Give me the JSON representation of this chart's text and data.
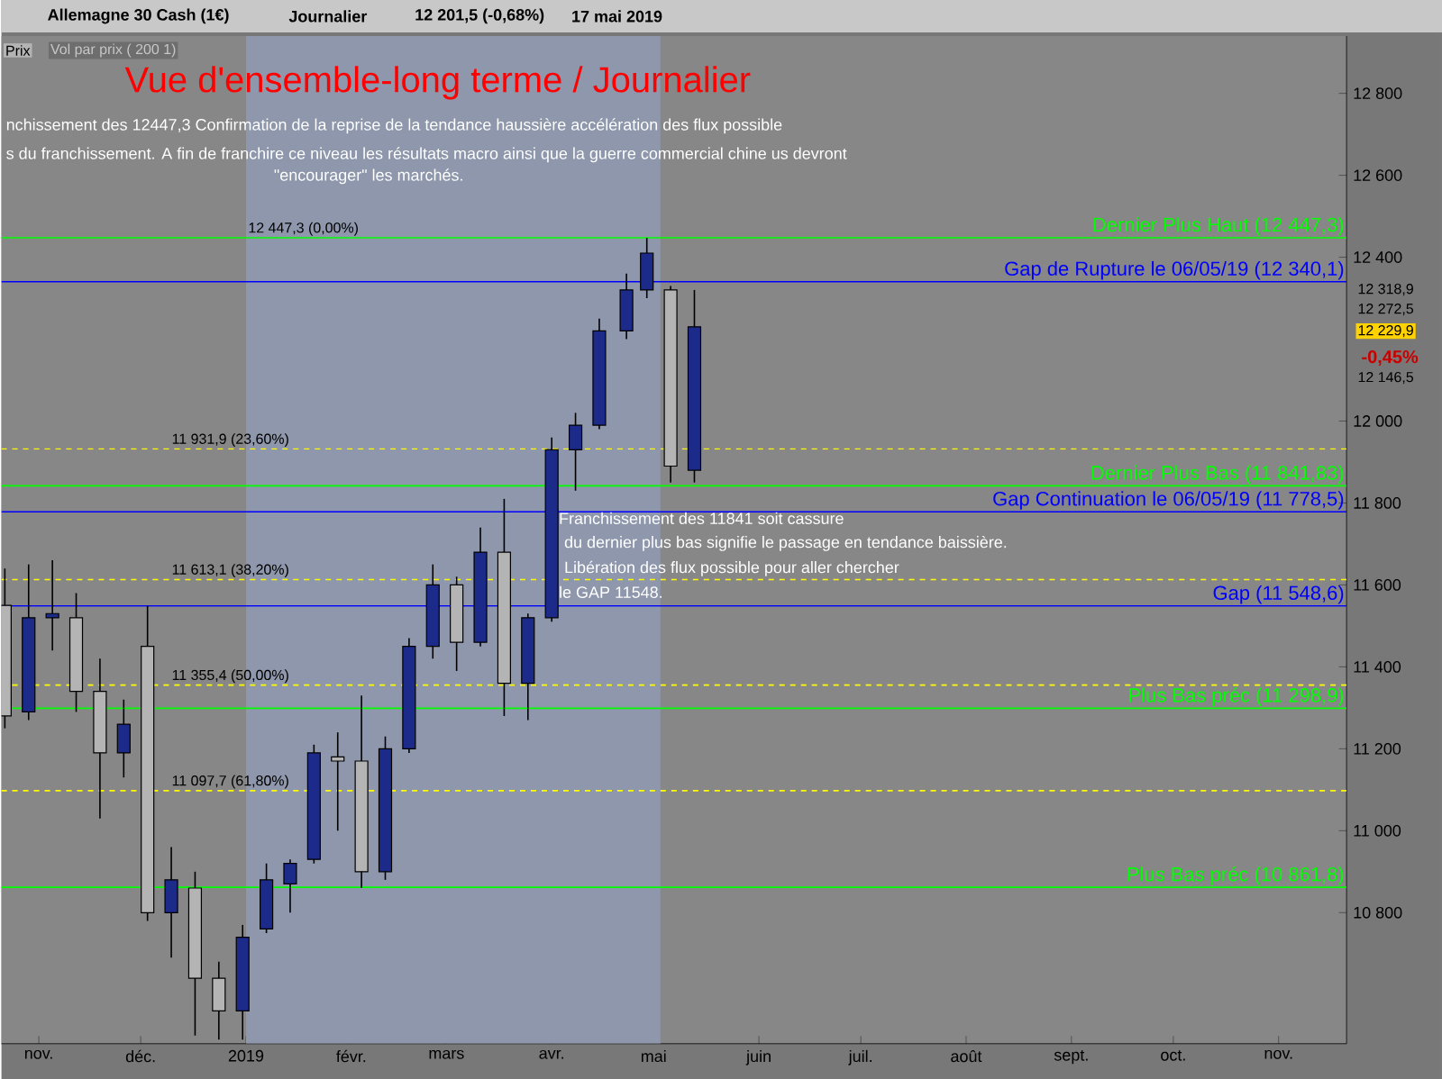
{
  "chart_data": {
    "type": "candlestick",
    "title": "Vue d'ensemble-long terme / Journalier",
    "x": [
      "2018-10-22",
      "2018-10-29",
      "2018-11-05",
      "2018-11-12",
      "2018-11-19",
      "2018-11-26",
      "2018-12-03",
      "2018-12-10",
      "2018-12-17",
      "2018-12-24",
      "2018-12-31",
      "2019-01-07",
      "2019-01-14",
      "2019-01-21",
      "2019-01-28",
      "2019-02-04",
      "2019-02-11",
      "2019-02-18",
      "2019-02-25",
      "2019-03-04",
      "2019-03-11",
      "2019-03-18",
      "2019-03-25",
      "2019-04-01",
      "2019-04-08",
      "2019-04-15",
      "2019-04-23",
      "2019-04-29",
      "2019-05-06",
      "2019-05-13"
    ],
    "ohlc": [
      [
        11550,
        11640,
        11250,
        11280
      ],
      [
        11290,
        11650,
        11270,
        11520
      ],
      [
        11520,
        11660,
        11440,
        11530
      ],
      [
        11520,
        11580,
        11290,
        11340
      ],
      [
        11340,
        11420,
        11030,
        11190
      ],
      [
        11190,
        11320,
        11130,
        11260
      ],
      [
        11450,
        11550,
        10780,
        10800
      ],
      [
        10800,
        10960,
        10690,
        10880
      ],
      [
        10860,
        10900,
        10500,
        10640
      ],
      [
        10640,
        10680,
        10490,
        10560
      ],
      [
        10560,
        10770,
        10490,
        10740
      ],
      [
        10760,
        10920,
        10750,
        10880
      ],
      [
        10870,
        10930,
        10800,
        10920
      ],
      [
        10930,
        11210,
        10920,
        11190
      ],
      [
        11180,
        11240,
        11000,
        11170
      ],
      [
        11170,
        11330,
        10860,
        10900
      ],
      [
        10900,
        11230,
        10880,
        11200
      ],
      [
        11200,
        11470,
        11190,
        11450
      ],
      [
        11450,
        11650,
        11420,
        11600
      ],
      [
        11600,
        11620,
        11390,
        11460
      ],
      [
        11460,
        11740,
        11450,
        11680
      ],
      [
        11680,
        11810,
        11280,
        11360
      ],
      [
        11360,
        11530,
        11270,
        11520
      ],
      [
        11520,
        11960,
        11510,
        11930
      ],
      [
        11930,
        12020,
        11830,
        11990
      ],
      [
        11990,
        12250,
        11980,
        12220
      ],
      [
        12220,
        12360,
        12200,
        12320
      ],
      [
        12320,
        12447.3,
        12300,
        12410
      ],
      [
        12320,
        12330,
        11850,
        11890
      ],
      [
        11880,
        12320,
        11850,
        12230
      ]
    ],
    "colors": [
      "#b4b4b4",
      "#1c2a8a",
      "#1c2a8a",
      "#b4b4b4",
      "#b4b4b4",
      "#1c2a8a",
      "#b4b4b4",
      "#1c2a8a",
      "#b4b4b4",
      "#b4b4b4",
      "#1c2a8a",
      "#1c2a8a",
      "#1c2a8a",
      "#1c2a8a",
      "#b4b4b4",
      "#b4b4b4",
      "#1c2a8a",
      "#1c2a8a",
      "#1c2a8a",
      "#b4b4b4",
      "#1c2a8a",
      "#b4b4b4",
      "#1c2a8a",
      "#1c2a8a",
      "#1c2a8a",
      "#1c2a8a",
      "#1c2a8a",
      "#1c2a8a",
      "#b4b4b4",
      "#1c2a8a"
    ],
    "xlim": [
      "2018-10-21",
      "2019-11-21"
    ],
    "xticks": [
      {
        "value": "2018-11-01",
        "label": "nov."
      },
      {
        "value": "2018-12-01",
        "label": "déc."
      },
      {
        "value": "2019-01-01",
        "label": "2019"
      },
      {
        "value": "2019-02-01",
        "label": "févr."
      },
      {
        "value": "2019-03-01",
        "label": "mars"
      },
      {
        "value": "2019-04-01",
        "label": "avr."
      },
      {
        "value": "2019-05-01",
        "label": "mai"
      },
      {
        "value": "2019-06-01",
        "label": "juin"
      },
      {
        "value": "2019-07-01",
        "label": "juil."
      },
      {
        "value": "2019-08-01",
        "label": "août"
      },
      {
        "value": "2019-09-01",
        "label": "sept."
      },
      {
        "value": "2019-10-01",
        "label": "oct."
      },
      {
        "value": "2019-11-01",
        "label": "nov."
      }
    ],
    "ylim": [
      10480,
      12940
    ],
    "yticks": [
      {
        "value": 10800,
        "label": "10 800"
      },
      {
        "value": 11000,
        "label": "11 000"
      },
      {
        "value": 11200,
        "label": "11 200"
      },
      {
        "value": 11400,
        "label": "11 400"
      },
      {
        "value": 11600,
        "label": "11 600"
      },
      {
        "value": 11800,
        "label": "11 800"
      },
      {
        "value": 12000,
        "label": "12 000"
      },
      {
        "value": 12400,
        "label": "12 400"
      },
      {
        "value": 12600,
        "label": "12 600"
      },
      {
        "value": 12800,
        "label": "12 800"
      }
    ],
    "bands": [
      {
        "axis": "x",
        "from": "2019-01-01",
        "to": "2019-05-03",
        "color": "#8e97ab"
      }
    ],
    "ref_lines": [
      {
        "axis": "y",
        "value": 12447.3,
        "label": "Dernier Plus Haut (12 447,3)",
        "color": "#00ff00"
      },
      {
        "axis": "y",
        "value": 12340.1,
        "label": "Gap de Rupture le 06/05/19 (12 340,1)",
        "color": "#0000ff"
      },
      {
        "axis": "y",
        "value": 11841.83,
        "label": "Dernier Plus Bas  (11 841,83)",
        "color": "#00ff00"
      },
      {
        "axis": "y",
        "value": 11778.5,
        "label": "Gap Continuation le 06/05/19 (11 778,5)",
        "color": "#0000ff"
      },
      {
        "axis": "y",
        "value": 11548.6,
        "label": "Gap (11 548,6)",
        "color": "#0000ff"
      },
      {
        "axis": "y",
        "value": 11298.9,
        "label": "Plus Bas préc (11 298,9)",
        "color": "#00ff00"
      },
      {
        "axis": "y",
        "value": 10861.8,
        "label": "Plus Bas préc (10 861,8)",
        "color": "#00ff00"
      },
      {
        "axis": "y",
        "value": 11931.9,
        "label": "11 931,9 (23,60%)",
        "color": "#ffff00",
        "line_style": "dashed"
      },
      {
        "axis": "y",
        "value": 11613.1,
        "label": "11 613,1 (38,20%)",
        "color": "#ffff00",
        "line_style": "dashed"
      },
      {
        "axis": "y",
        "value": 11355.4,
        "label": "11 355,4 (50,00%)",
        "color": "#ffff00",
        "line_style": "dashed"
      },
      {
        "axis": "y",
        "value": 11097.7,
        "label": "11 097,7 (61,80%)",
        "color": "#ffff00",
        "line_style": "dashed"
      }
    ],
    "annotations": [
      "Allemagne 30 Cash (1€)",
      "Journalier",
      "12 201,5 (-0,68%)",
      "17 mai 2019",
      "Prix",
      "Vol par prix ( 200 1)",
      "nchissement des 12447,3 Confirmation de la reprise de la tendance haussière accélération des flux possible",
      "s du franchissement. A fin de franchire ce niveau les résultats macro ainsi que la guerre commercial chine us devront",
      "\"encourager\" les marchés.",
      {
        "text": "12 447,3 (0,00%)",
        "x": "2019-01-01",
        "y": 12447.3
      },
      "Franchissement des 11841 soit cassure",
      "du dernier plus bas signifie le passage en tendance baissière.",
      "Libération des flux possible pour aller chercher",
      "le GAP 11548.",
      "12 318,9",
      "12 272,5",
      "12 229,9",
      "-0,45%",
      "12 146,5"
    ]
  }
}
